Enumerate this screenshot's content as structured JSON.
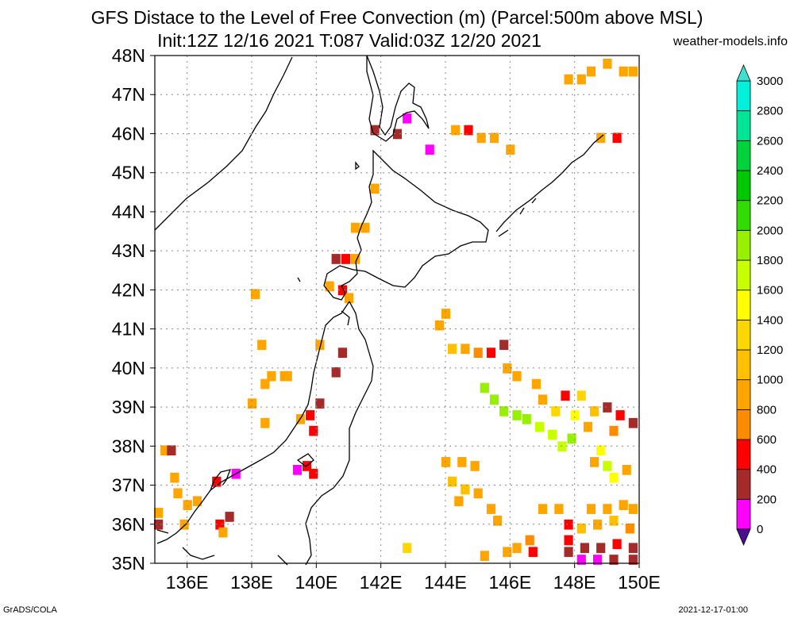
{
  "header": {
    "title_line1": "GFS Distace to the Level of Free Convection (m) (Parcel:500m above MSL)",
    "title_line2": "Init:12Z 12/16 2021 T:087 Valid:03Z 12/20 2021",
    "source": "weather-models.info"
  },
  "footer": {
    "left": "GrADS/COLA",
    "right": "2021-12-17-01:00"
  },
  "map": {
    "lon_range": [
      135,
      150
    ],
    "lat_range": [
      35,
      48
    ],
    "lon_ticks": [
      136,
      138,
      140,
      142,
      144,
      146,
      148,
      150
    ],
    "lon_labels": [
      "136E",
      "138E",
      "140E",
      "142E",
      "144E",
      "146E",
      "148E",
      "150E"
    ],
    "lat_ticks": [
      35,
      36,
      37,
      38,
      39,
      40,
      41,
      42,
      43,
      44,
      45,
      46,
      47,
      48
    ],
    "lat_labels": [
      "35N",
      "36N",
      "37N",
      "38N",
      "39N",
      "40N",
      "41N",
      "42N",
      "43N",
      "44N",
      "45N",
      "46N",
      "47N",
      "48N"
    ]
  },
  "colorbar": {
    "levels": [
      0,
      200,
      400,
      600,
      800,
      1000,
      1200,
      1400,
      1600,
      1800,
      2000,
      2200,
      2400,
      2600,
      2800,
      3000
    ],
    "labels": [
      "0",
      "200",
      "400",
      "600",
      "800",
      "1000",
      "1200",
      "1400",
      "1600",
      "1800",
      "2000",
      "2200",
      "2400",
      "2600",
      "2800",
      "3000"
    ],
    "colors": [
      "#4b0e8c",
      "#ff00ff",
      "#a52a2a",
      "#ff0000",
      "#ff8c00",
      "#ffa500",
      "#ffc000",
      "#ffd700",
      "#ffff00",
      "#c8ff00",
      "#96f000",
      "#32dc00",
      "#00c800",
      "#00d23c",
      "#00e696",
      "#00f0dc",
      "#40e0d0"
    ]
  },
  "field_cells": [
    {
      "lon": 148.5,
      "lat": 47.6,
      "v": "#ffa500"
    },
    {
      "lon": 149.0,
      "lat": 47.8,
      "v": "#ffa500"
    },
    {
      "lon": 149.5,
      "lat": 47.6,
      "v": "#ffa500"
    },
    {
      "lon": 149.8,
      "lat": 47.6,
      "v": "#ffa500"
    },
    {
      "lon": 147.8,
      "lat": 47.4,
      "v": "#ffa500"
    },
    {
      "lon": 148.2,
      "lat": 47.4,
      "v": "#ffa500"
    },
    {
      "lon": 141.8,
      "lat": 46.1,
      "v": "#a52a2a"
    },
    {
      "lon": 142.5,
      "lat": 46.0,
      "v": "#a52a2a"
    },
    {
      "lon": 142.8,
      "lat": 46.4,
      "v": "#ff00ff"
    },
    {
      "lon": 144.3,
      "lat": 46.1,
      "v": "#ffa500"
    },
    {
      "lon": 144.7,
      "lat": 46.1,
      "v": "#ff0000"
    },
    {
      "lon": 145.1,
      "lat": 45.9,
      "v": "#ffa500"
    },
    {
      "lon": 145.5,
      "lat": 45.9,
      "v": "#ffa500"
    },
    {
      "lon": 146.0,
      "lat": 45.6,
      "v": "#ffa500"
    },
    {
      "lon": 143.5,
      "lat": 45.6,
      "v": "#ff00ff"
    },
    {
      "lon": 148.8,
      "lat": 45.9,
      "v": "#ffa500"
    },
    {
      "lon": 149.3,
      "lat": 45.9,
      "v": "#ff0000"
    },
    {
      "lon": 141.8,
      "lat": 44.6,
      "v": "#ffa500"
    },
    {
      "lon": 141.2,
      "lat": 43.6,
      "v": "#ffa500"
    },
    {
      "lon": 141.5,
      "lat": 43.6,
      "v": "#ffa500"
    },
    {
      "lon": 140.6,
      "lat": 42.8,
      "v": "#a52a2a"
    },
    {
      "lon": 140.9,
      "lat": 42.8,
      "v": "#ff0000"
    },
    {
      "lon": 141.2,
      "lat": 42.8,
      "v": "#ffa500"
    },
    {
      "lon": 140.4,
      "lat": 42.1,
      "v": "#ffa500"
    },
    {
      "lon": 140.8,
      "lat": 42.0,
      "v": "#ff0000"
    },
    {
      "lon": 141.0,
      "lat": 41.8,
      "v": "#ffa500"
    },
    {
      "lon": 138.1,
      "lat": 41.9,
      "v": "#ffa500"
    },
    {
      "lon": 144.0,
      "lat": 41.4,
      "v": "#ffa500"
    },
    {
      "lon": 143.8,
      "lat": 41.1,
      "v": "#ffa500"
    },
    {
      "lon": 138.3,
      "lat": 40.6,
      "v": "#ffa500"
    },
    {
      "lon": 140.1,
      "lat": 40.6,
      "v": "#ffa500"
    },
    {
      "lon": 140.8,
      "lat": 40.4,
      "v": "#a52a2a"
    },
    {
      "lon": 140.6,
      "lat": 39.9,
      "v": "#a52a2a"
    },
    {
      "lon": 138.6,
      "lat": 39.8,
      "v": "#ffa500"
    },
    {
      "lon": 139.0,
      "lat": 39.8,
      "v": "#ffa500"
    },
    {
      "lon": 138.4,
      "lat": 39.6,
      "v": "#ffa500"
    },
    {
      "lon": 138.0,
      "lat": 39.1,
      "v": "#ffa500"
    },
    {
      "lon": 139.1,
      "lat": 39.8,
      "v": "#ffa500"
    },
    {
      "lon": 144.2,
      "lat": 40.5,
      "v": "#ffc000"
    },
    {
      "lon": 144.6,
      "lat": 40.5,
      "v": "#ffa500"
    },
    {
      "lon": 145.0,
      "lat": 40.4,
      "v": "#ff8c00"
    },
    {
      "lon": 145.4,
      "lat": 40.4,
      "v": "#ff0000"
    },
    {
      "lon": 145.8,
      "lat": 40.6,
      "v": "#a52a2a"
    },
    {
      "lon": 145.9,
      "lat": 40.0,
      "v": "#ffa500"
    },
    {
      "lon": 146.2,
      "lat": 39.8,
      "v": "#ffa500"
    },
    {
      "lon": 146.8,
      "lat": 39.6,
      "v": "#ffa500"
    },
    {
      "lon": 147.0,
      "lat": 39.2,
      "v": "#ffa500"
    },
    {
      "lon": 145.2,
      "lat": 39.5,
      "v": "#96f000"
    },
    {
      "lon": 145.5,
      "lat": 39.2,
      "v": "#96f000"
    },
    {
      "lon": 145.8,
      "lat": 38.9,
      "v": "#96f000"
    },
    {
      "lon": 146.2,
      "lat": 38.8,
      "v": "#96f000"
    },
    {
      "lon": 146.5,
      "lat": 38.7,
      "v": "#96f000"
    },
    {
      "lon": 146.9,
      "lat": 38.5,
      "v": "#c8ff00"
    },
    {
      "lon": 147.3,
      "lat": 38.3,
      "v": "#c8ff00"
    },
    {
      "lon": 147.6,
      "lat": 38.0,
      "v": "#c8ff00"
    },
    {
      "lon": 147.9,
      "lat": 38.2,
      "v": "#96f000"
    },
    {
      "lon": 147.7,
      "lat": 39.3,
      "v": "#ff0000"
    },
    {
      "lon": 148.2,
      "lat": 39.3,
      "v": "#ffd700"
    },
    {
      "lon": 148.6,
      "lat": 38.9,
      "v": "#ffc000"
    },
    {
      "lon": 149.0,
      "lat": 39.0,
      "v": "#a52a2a"
    },
    {
      "lon": 149.4,
      "lat": 38.8,
      "v": "#ff0000"
    },
    {
      "lon": 149.8,
      "lat": 38.6,
      "v": "#a52a2a"
    },
    {
      "lon": 147.4,
      "lat": 38.9,
      "v": "#ffd700"
    },
    {
      "lon": 148.0,
      "lat": 38.8,
      "v": "#ffff00"
    },
    {
      "lon": 148.4,
      "lat": 38.5,
      "v": "#ffa500"
    },
    {
      "lon": 149.2,
      "lat": 38.4,
      "v": "#ff8c00"
    },
    {
      "lon": 139.5,
      "lat": 38.7,
      "v": "#ffa500"
    },
    {
      "lon": 139.8,
      "lat": 38.8,
      "v": "#ff0000"
    },
    {
      "lon": 139.9,
      "lat": 38.4,
      "v": "#ff0000"
    },
    {
      "lon": 140.1,
      "lat": 39.1,
      "v": "#a52a2a"
    },
    {
      "lon": 138.4,
      "lat": 38.6,
      "v": "#ffa500"
    },
    {
      "lon": 135.3,
      "lat": 37.9,
      "v": "#ffa500"
    },
    {
      "lon": 135.5,
      "lat": 37.9,
      "v": "#a52a2a"
    },
    {
      "lon": 135.6,
      "lat": 37.2,
      "v": "#ffa500"
    },
    {
      "lon": 135.7,
      "lat": 36.8,
      "v": "#ffa500"
    },
    {
      "lon": 136.0,
      "lat": 36.5,
      "v": "#ffa500"
    },
    {
      "lon": 136.3,
      "lat": 36.6,
      "v": "#ffa500"
    },
    {
      "lon": 135.9,
      "lat": 36.0,
      "v": "#ffa500"
    },
    {
      "lon": 136.9,
      "lat": 37.1,
      "v": "#ff0000"
    },
    {
      "lon": 137.5,
      "lat": 37.3,
      "v": "#ff00ff"
    },
    {
      "lon": 137.0,
      "lat": 36.0,
      "v": "#ff0000"
    },
    {
      "lon": 137.3,
      "lat": 36.2,
      "v": "#a52a2a"
    },
    {
      "lon": 137.1,
      "lat": 35.8,
      "v": "#ffa500"
    },
    {
      "lon": 135.1,
      "lat": 36.3,
      "v": "#ffa500"
    },
    {
      "lon": 135.1,
      "lat": 36.0,
      "v": "#a52a2a"
    },
    {
      "lon": 139.4,
      "lat": 37.4,
      "v": "#ff00ff"
    },
    {
      "lon": 139.7,
      "lat": 37.5,
      "v": "#ff0000"
    },
    {
      "lon": 139.9,
      "lat": 37.3,
      "v": "#ff0000"
    },
    {
      "lon": 144.0,
      "lat": 37.6,
      "v": "#ffa500"
    },
    {
      "lon": 144.5,
      "lat": 37.6,
      "v": "#ffa500"
    },
    {
      "lon": 144.9,
      "lat": 37.5,
      "v": "#ffa500"
    },
    {
      "lon": 144.2,
      "lat": 37.1,
      "v": "#ffc000"
    },
    {
      "lon": 144.6,
      "lat": 36.9,
      "v": "#ffc000"
    },
    {
      "lon": 145.0,
      "lat": 36.8,
      "v": "#ffa500"
    },
    {
      "lon": 144.4,
      "lat": 36.6,
      "v": "#ffa500"
    },
    {
      "lon": 145.4,
      "lat": 36.4,
      "v": "#ffa500"
    },
    {
      "lon": 145.6,
      "lat": 36.1,
      "v": "#ffa500"
    },
    {
      "lon": 148.8,
      "lat": 37.9,
      "v": "#ffff00"
    },
    {
      "lon": 149.0,
      "lat": 37.5,
      "v": "#c8ff00"
    },
    {
      "lon": 149.2,
      "lat": 37.2,
      "v": "#ffff00"
    },
    {
      "lon": 149.6,
      "lat": 37.4,
      "v": "#ffa500"
    },
    {
      "lon": 148.6,
      "lat": 37.6,
      "v": "#ffa500"
    },
    {
      "lon": 147.0,
      "lat": 36.4,
      "v": "#ffa500"
    },
    {
      "lon": 147.5,
      "lat": 36.4,
      "v": "#ffa500"
    },
    {
      "lon": 148.5,
      "lat": 36.4,
      "v": "#ffa500"
    },
    {
      "lon": 149.0,
      "lat": 36.4,
      "v": "#ffa500"
    },
    {
      "lon": 149.5,
      "lat": 36.5,
      "v": "#ffa500"
    },
    {
      "lon": 149.8,
      "lat": 36.4,
      "v": "#ffa500"
    },
    {
      "lon": 147.8,
      "lat": 36.0,
      "v": "#ff0000"
    },
    {
      "lon": 148.2,
      "lat": 35.9,
      "v": "#ffc000"
    },
    {
      "lon": 148.7,
      "lat": 36.0,
      "v": "#ffa500"
    },
    {
      "lon": 149.2,
      "lat": 36.1,
      "v": "#ffc000"
    },
    {
      "lon": 149.7,
      "lat": 35.9,
      "v": "#ff8c00"
    },
    {
      "lon": 147.8,
      "lat": 35.6,
      "v": "#ff0000"
    },
    {
      "lon": 147.8,
      "lat": 35.3,
      "v": "#a52a2a"
    },
    {
      "lon": 148.3,
      "lat": 35.4,
      "v": "#a52a2a"
    },
    {
      "lon": 148.8,
      "lat": 35.4,
      "v": "#a52a2a"
    },
    {
      "lon": 149.3,
      "lat": 35.5,
      "v": "#ff0000"
    },
    {
      "lon": 149.8,
      "lat": 35.4,
      "v": "#a52a2a"
    },
    {
      "lon": 148.2,
      "lat": 35.1,
      "v": "#ff00ff"
    },
    {
      "lon": 148.7,
      "lat": 35.1,
      "v": "#ff00ff"
    },
    {
      "lon": 149.2,
      "lat": 35.1,
      "v": "#a52a2a"
    },
    {
      "lon": 149.8,
      "lat": 35.1,
      "v": "#a52a2a"
    },
    {
      "lon": 146.2,
      "lat": 35.4,
      "v": "#ffa500"
    },
    {
      "lon": 146.6,
      "lat": 35.6,
      "v": "#ff8c00"
    },
    {
      "lon": 146.7,
      "lat": 35.3,
      "v": "#ff0000"
    },
    {
      "lon": 145.9,
      "lat": 35.3,
      "v": "#ffa500"
    },
    {
      "lon": 145.2,
      "lat": 35.2,
      "v": "#ffa500"
    },
    {
      "lon": 142.8,
      "lat": 35.4,
      "v": "#ffd700"
    }
  ]
}
